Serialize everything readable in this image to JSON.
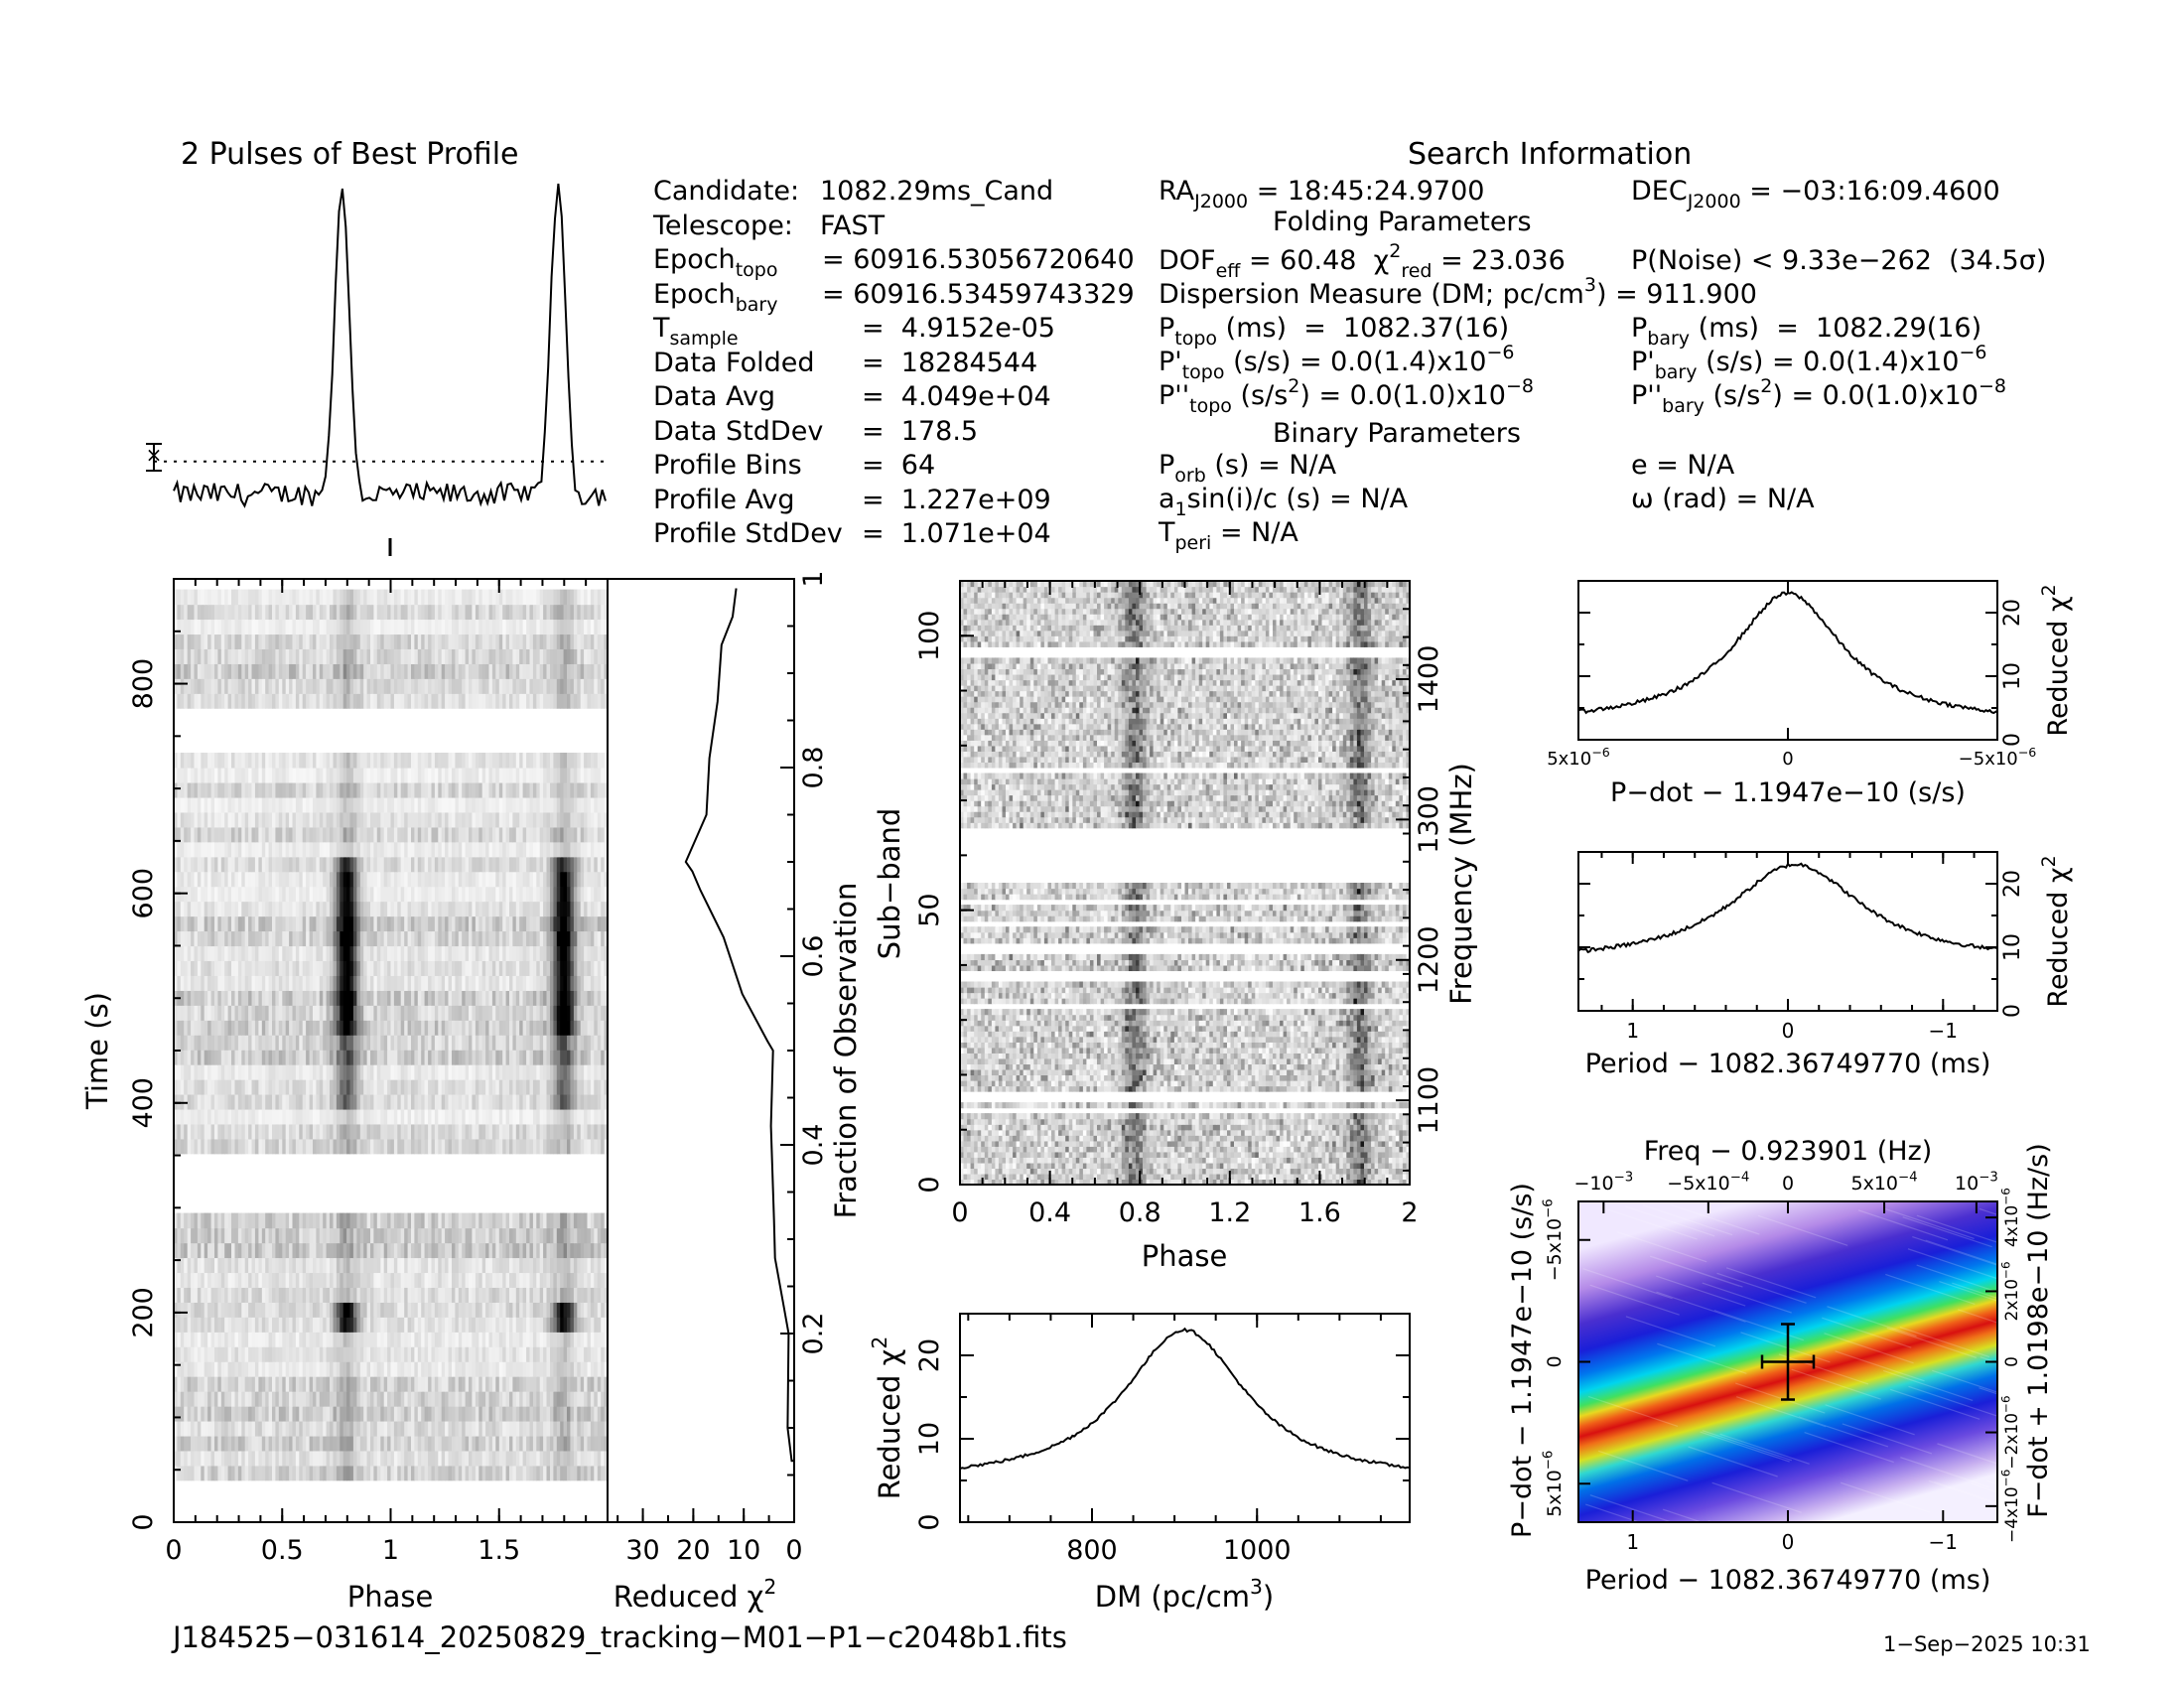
{
  "header": {
    "profile_title": "2 Pulses of Best Profile",
    "search_title": "Search Information",
    "folding_title": "Folding Parameters",
    "binary_title": "Binary Parameters"
  },
  "info_left": [
    {
      "label": "Candidate:",
      "sub": "",
      "value": "1082.29ms_Cand"
    },
    {
      "label": "Telescope:",
      "sub": "",
      "value": "FAST"
    },
    {
      "label": "Epoch",
      "sub": "topo",
      "value": "= 60916.53056720640"
    },
    {
      "label": "Epoch",
      "sub": "bary",
      "value": "= 60916.53459743329"
    },
    {
      "label": "T",
      "sub": "sample",
      "value": "=  4.9152e-05"
    },
    {
      "label": "Data Folded",
      "sub": "",
      "value": "=  18284544"
    },
    {
      "label": "Data Avg",
      "sub": "",
      "value": "=  4.049e+04"
    },
    {
      "label": "Data StdDev",
      "sub": "",
      "value": "=  178.5"
    },
    {
      "label": "Profile Bins",
      "sub": "",
      "value": "=  64"
    },
    {
      "label": "Profile Avg",
      "sub": "",
      "value": "=  1.227e+09"
    },
    {
      "label": "Profile StdDev",
      "sub": "",
      "value": "=  1.071e+04"
    }
  ],
  "info_mid": {
    "ra_label": "RA",
    "ra_sub": "J2000",
    "ra_value": "= 18:45:24.9700",
    "dof_label": "DOF",
    "dof_sub": "eff",
    "dof_value": "= 60.48",
    "chi_label": "χ",
    "chi_sup": "2",
    "chi_sub": "red",
    "chi_value": "= 23.036",
    "dm_label": "Dispersion Measure (DM; pc/cm",
    "dm_sup": "3",
    "dm_value": ") = 911.900",
    "ptopo_label": "P",
    "ptopo_sub": "topo",
    "ptopo_value": "(ms)  =  1082.37(16)",
    "pdtopo_label": "P'",
    "pdtopo_sub": "topo",
    "pdtopo_value": "(s/s) = 0.0(1.4)x10",
    "pdtopo_exp": "−6",
    "pddtopo_label": "P''",
    "pddtopo_sub": "topo",
    "pddtopo_value": "(s/s",
    "pddtopo_sup": "2",
    "pddtopo_value2": ") = 0.0(1.0)x10",
    "pddtopo_exp": "−8",
    "porb_label": "P",
    "porb_sub": "orb",
    "porb_value": "(s) = N/A",
    "asini_label": "a",
    "asini_sub": "1",
    "asini_value": "sin(i)/c (s) = N/A",
    "tperi_label": "T",
    "tperi_sub": "peri",
    "tperi_value": "= N/A"
  },
  "info_right": {
    "dec_label": "DEC",
    "dec_sub": "J2000",
    "dec_value": "= −03:16:09.4600",
    "noise": "P(Noise) < 9.33e−262  (34.5σ)",
    "pbary_label": "P",
    "pbary_sub": "bary",
    "pbary_value": "(ms)  =  1082.29(16)",
    "pdbary_label": "P'",
    "pdbary_sub": "bary",
    "pdbary_value": "(s/s) = 0.0(1.4)x10",
    "pdbary_exp": "−6",
    "pddbary_label": "P''",
    "pddbary_sub": "bary",
    "pddbary_value": "(s/s",
    "pddbary_sup": "2",
    "pddbary_value2": ") = 0.0(1.0)x10",
    "pddbary_exp": "−8",
    "e_value": "e = N/A",
    "omega_value": "ω (rad) = N/A"
  },
  "footer": {
    "filename": "J184525−031614_20250829_tracking−M01−P1−c2048b1.fits",
    "timestamp": "1−Sep−2025 10:31"
  },
  "chart_data": [
    {
      "id": "profile",
      "type": "line",
      "title": "2 Pulses of Best Profile",
      "xlim": [
        0,
        2
      ],
      "peaks_at_phase": [
        0.78,
        1.78
      ],
      "baseline_level": 0.08,
      "peak_level": 1.0,
      "dotted_reference_level": 0.17
    },
    {
      "id": "time_phase",
      "type": "heatmap",
      "xlabel": "Phase",
      "ylabel": "Time (s)",
      "xlim": [
        0,
        2
      ],
      "ylim": [
        0,
        900
      ],
      "xticks": [
        "0",
        "0.5",
        "1",
        "1.5"
      ],
      "yticks": [
        "0",
        "200",
        "400",
        "600",
        "800"
      ],
      "masked_time_ranges_s": [
        [
          305,
          340
        ],
        [
          740,
          770
        ]
      ],
      "pulse_columns_phase": [
        0.79,
        1.79
      ]
    },
    {
      "id": "chi_vs_time",
      "type": "line",
      "xlabel": "Reduced χ",
      "xlabel_sup": "2",
      "ylabel_right": "Fraction of Observation",
      "xticks": [
        "30",
        "20",
        "10",
        "0"
      ],
      "yticks": [
        "0.2",
        "0.4",
        "0.6",
        "0.8",
        "1"
      ],
      "x_reversed": true,
      "xlim": [
        37,
        0
      ],
      "ylim": [
        0,
        1
      ],
      "points": [
        [
          0,
          0.06
        ],
        [
          0,
          0.065
        ],
        [
          0.5,
          0.065
        ],
        [
          1.3,
          0.1
        ],
        [
          1.1,
          0.2
        ],
        [
          2.1,
          0.23
        ],
        [
          3.8,
          0.28
        ],
        [
          4.0,
          0.32
        ],
        [
          4.6,
          0.42
        ],
        [
          4.2,
          0.5
        ],
        [
          5.3,
          0.51
        ],
        [
          10.3,
          0.56
        ],
        [
          14.0,
          0.62
        ],
        [
          18.6,
          0.67
        ],
        [
          20.2,
          0.69
        ],
        [
          21.5,
          0.7
        ],
        [
          17.4,
          0.75
        ],
        [
          16.8,
          0.81
        ],
        [
          15.2,
          0.87
        ],
        [
          14.4,
          0.93
        ],
        [
          12.2,
          0.96
        ],
        [
          11.5,
          0.99
        ]
      ]
    },
    {
      "id": "subband_phase",
      "type": "heatmap",
      "xlabel": "Phase",
      "ylabel": "Sub−band",
      "ylabel_right": "Frequency (MHz)",
      "xlim": [
        0,
        2
      ],
      "ylim": [
        0,
        110
      ],
      "xticks": [
        "0",
        "0.4",
        "0.8",
        "1.2",
        "1.6",
        "2"
      ],
      "yticks": [
        "0",
        "50",
        "100"
      ],
      "yticks_right": [
        "1100",
        "1200",
        "1300",
        "1400"
      ],
      "masked_subbands": [
        [
          13,
          14
        ],
        [
          15.5,
          16.5
        ],
        [
          32,
          33
        ],
        [
          37,
          39
        ],
        [
          42,
          44
        ],
        [
          47,
          48
        ],
        [
          51,
          52
        ],
        [
          55,
          65
        ],
        [
          75,
          76
        ],
        [
          96,
          98
        ]
      ],
      "pulse_columns_phase": [
        0.77,
        1.77
      ]
    },
    {
      "id": "dm_chi",
      "type": "line",
      "xlabel": "DM (pc/cm",
      "xlabel_sup": "3",
      "xlabel_end": ")",
      "ylabel": "Reduced χ",
      "ylabel_sup": "2",
      "xlim": [
        640,
        1185
      ],
      "ylim": [
        0,
        25
      ],
      "xticks": [
        "800",
        "1000"
      ],
      "yticks": [
        "0",
        "10",
        "20"
      ],
      "peak": {
        "x": 912,
        "y": 23.04
      },
      "baseline": 5
    },
    {
      "id": "pdot_chi",
      "type": "line",
      "xlabel": "P−dot − 1.1947e−10 (s/s)",
      "ylabel_right": "Reduced χ",
      "ylabel_right_sup": "2",
      "xlim": [
        5e-06,
        -5e-06
      ],
      "ylim": [
        0,
        25
      ],
      "xticks": [
        "5x10",
        "0",
        "−5x10"
      ],
      "xtick_exp": "−6",
      "yticks": [
        "0",
        "10",
        "20"
      ],
      "peak": {
        "x": 0,
        "y": 23.04
      },
      "baseline": 2.5
    },
    {
      "id": "period_chi",
      "type": "line",
      "xlabel": "Period − 1082.36749770 (ms)",
      "ylabel_right": "Reduced χ",
      "ylabel_right_sup": "2",
      "xlim": [
        1.35,
        -1.35
      ],
      "ylim": [
        0,
        25
      ],
      "xticks": [
        "1",
        "0",
        "−1"
      ],
      "yticks": [
        "0",
        "10",
        "20"
      ],
      "peak": {
        "x": -0.05,
        "y": 23.04
      },
      "baseline": 7.5
    },
    {
      "id": "period_pdot_map",
      "type": "heatmap",
      "title": "Freq − 0.923901 (Hz)",
      "xlabel": "Period − 1082.36749770 (ms)",
      "ylabel": "P−dot − 1.1947e−10 (s/s)",
      "ylabel_right": "F−dot + 1.0198e−10 (Hz/s)",
      "xticks": [
        "1",
        "0",
        "−1"
      ],
      "xticks_top": [
        "−10",
        "−5x10",
        "0",
        "5x10",
        "10"
      ],
      "xticks_top_exp": [
        "−3",
        "−4",
        "",
        "−4",
        "−3"
      ],
      "yticks": [
        "−5x10",
        "0",
        "5x10"
      ],
      "ytick_exp": "−6",
      "yticks_right": [
        "4x10",
        "2x10",
        "0",
        "−2x10",
        "−4x10"
      ],
      "ytick_right_exp": "−6",
      "best_point": {
        "x": 0,
        "y": 0
      }
    }
  ]
}
